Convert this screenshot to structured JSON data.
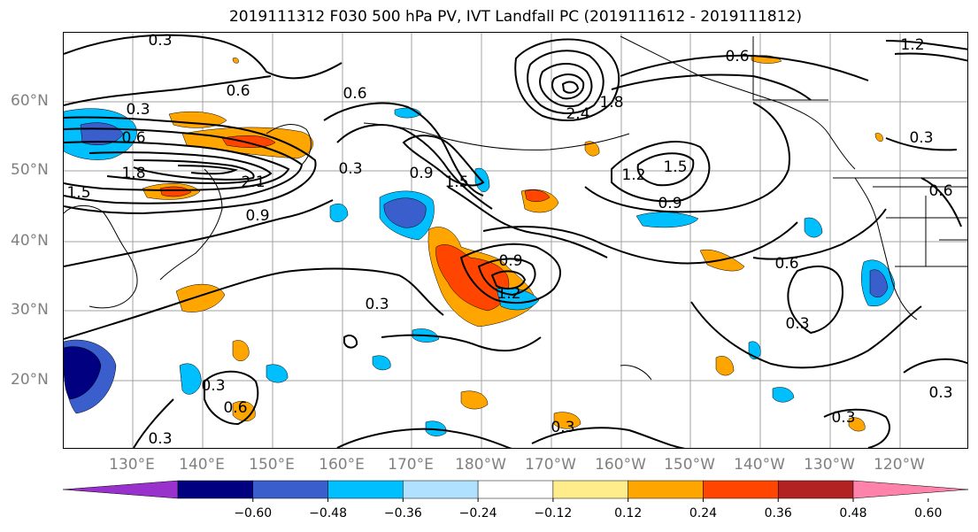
{
  "title": "2019111312 F030 500 hPa PV, IVT Landfall PC (2019111612 - 2019111812)",
  "lat_labels": [
    "60°N",
    "50°N",
    "40°N",
    "30°N",
    "20°N"
  ],
  "lon_labels": [
    "130°E",
    "140°E",
    "150°E",
    "160°E",
    "170°E",
    "180°W",
    "170°W",
    "160°W",
    "150°W",
    "140°W",
    "130°W",
    "120°W"
  ],
  "contour_labels": [
    "0.3",
    "0.6",
    "0.6",
    "1.8",
    "1.5",
    "2.1",
    "0.9",
    "0.3",
    "0.6",
    "0.9",
    "1.5",
    "0.3",
    "2.4",
    "1.8",
    "0.6",
    "1.2",
    "1.5",
    "0.9",
    "0.9",
    "1.2",
    "0.3",
    "0.6",
    "0.3",
    "0.3",
    "0.6",
    "0.3",
    "0.3",
    "0.3",
    "0.3",
    "1.2",
    "0.3",
    "0.6"
  ],
  "colorbar": {
    "tick_labels": [
      "−0.60",
      "−0.48",
      "−0.36",
      "−0.24",
      "−0.12",
      "0.12",
      "0.24",
      "0.36",
      "0.48",
      "0.60"
    ],
    "colors": [
      "#9932cc",
      "#000080",
      "#3a5fcd",
      "#00bfff",
      "#b0e2ff",
      "#ffffff",
      "#ffec8b",
      "#ffa500",
      "#ff4500",
      "#b22222",
      "#ff82ab"
    ]
  },
  "colors": {
    "grid": "#a0a0a0",
    "contour": "#000000",
    "axis_label": "#808080"
  }
}
